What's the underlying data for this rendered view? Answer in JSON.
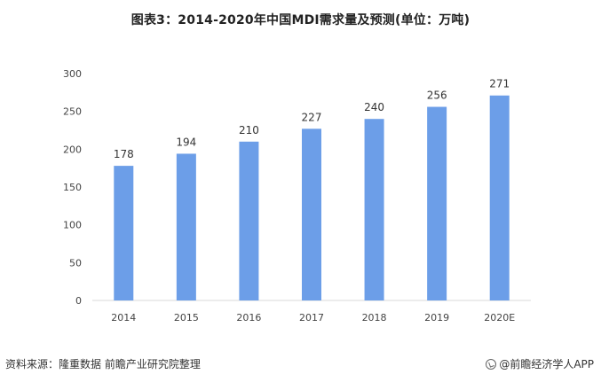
{
  "title": "图表3：2014-2020年中国MDI需求量及预测(单位：万吨)",
  "footer": {
    "source": "资料来源：隆重数据 前瞻产业研究院整理",
    "brand": "@前瞻经济学人APP"
  },
  "colors": {
    "bar": "#6c9ee8",
    "axis": "#d9d9d9"
  },
  "chart_data": {
    "type": "bar",
    "categories": [
      "2014",
      "2015",
      "2016",
      "2017",
      "2018",
      "2019",
      "2020E"
    ],
    "values": [
      178,
      194,
      210,
      227,
      240,
      256,
      271
    ],
    "value_labels": [
      "178",
      "194",
      "210",
      "227",
      "240",
      "256",
      "271"
    ],
    "yticks": [
      0,
      50,
      100,
      150,
      200,
      250,
      300
    ],
    "ylim": [
      0,
      300
    ],
    "grid": false,
    "legend": "none"
  }
}
